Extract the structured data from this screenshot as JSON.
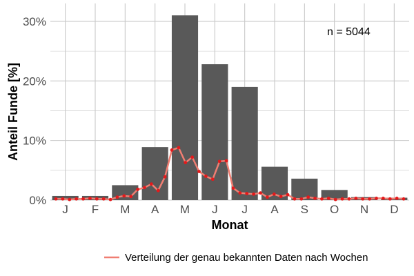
{
  "chart_data": {
    "type": "bar",
    "categories": [
      "J",
      "F",
      "M",
      "A",
      "M",
      "J",
      "J",
      "A",
      "S",
      "O",
      "N",
      "D"
    ],
    "values": [
      0.7,
      0.7,
      2.5,
      8.9,
      31.0,
      22.8,
      19.0,
      5.6,
      3.6,
      1.7,
      0.5,
      0.4
    ],
    "xlabel": "Monat",
    "ylabel": "Anteil Funde [%]",
    "ylim": [
      0,
      33
    ],
    "yticks": [
      0,
      10,
      20,
      30
    ],
    "ytick_labels": [
      "0%",
      "10%",
      "20%",
      "30%"
    ],
    "annotation": "n = 5044",
    "grid": true,
    "bar_color": "#595959",
    "line_color": "#F07E72",
    "point_color": "#E41A1C",
    "legend_position": "bottom",
    "series": [
      {
        "name": "Verteilung der genau bekannten Daten nach Wochen",
        "type": "line",
        "x": [
          1,
          2,
          3,
          4,
          5,
          6,
          7,
          8,
          9,
          10,
          11,
          12,
          13,
          14,
          15,
          16,
          17,
          18,
          19,
          20,
          21,
          22,
          23,
          24,
          25,
          26,
          27,
          28,
          29,
          30,
          31,
          32,
          33,
          34,
          35,
          36,
          37,
          38,
          39,
          40,
          41,
          42,
          43,
          44,
          45,
          46,
          47,
          48,
          49,
          50,
          51,
          52
        ],
        "values": [
          0.2,
          0.2,
          0.1,
          0.2,
          0.2,
          0.3,
          0.2,
          0.2,
          0.1,
          0.5,
          0.7,
          0.6,
          1.8,
          2.1,
          2.7,
          1.6,
          3.9,
          8.4,
          8.8,
          6.3,
          7.2,
          4.8,
          4.0,
          3.5,
          6.5,
          6.6,
          2.0,
          1.2,
          1.1,
          1.0,
          1.2,
          0.5,
          1.0,
          0.6,
          0.9,
          0.2,
          0.2,
          0.5,
          0.3,
          0.2,
          0.3,
          0.1,
          0.2,
          0.2,
          0.3,
          0.2,
          0.2,
          0.3,
          0.3,
          0.2,
          0.3,
          0.2
        ]
      }
    ]
  }
}
